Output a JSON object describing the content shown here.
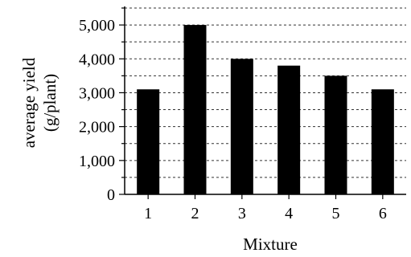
{
  "chart_data": {
    "type": "bar",
    "categories": [
      "1",
      "2",
      "3",
      "4",
      "5",
      "6"
    ],
    "values": [
      3100,
      5000,
      4000,
      3800,
      3500,
      3100
    ],
    "xlabel": "Mixture",
    "ylabel_line1": "average yield",
    "ylabel_line2": "(g/plant)",
    "ylim": [
      0,
      5500
    ],
    "y_ticks": [
      0,
      1000,
      2000,
      3000,
      4000,
      5000
    ],
    "y_tick_labels": [
      "0",
      "1,000",
      "2,000",
      "3,000",
      "4,000",
      "5,000"
    ],
    "y_minor_step": 500,
    "grid": "horizontal dashed",
    "bar_color": "#000000",
    "grid_color": "#333333"
  }
}
